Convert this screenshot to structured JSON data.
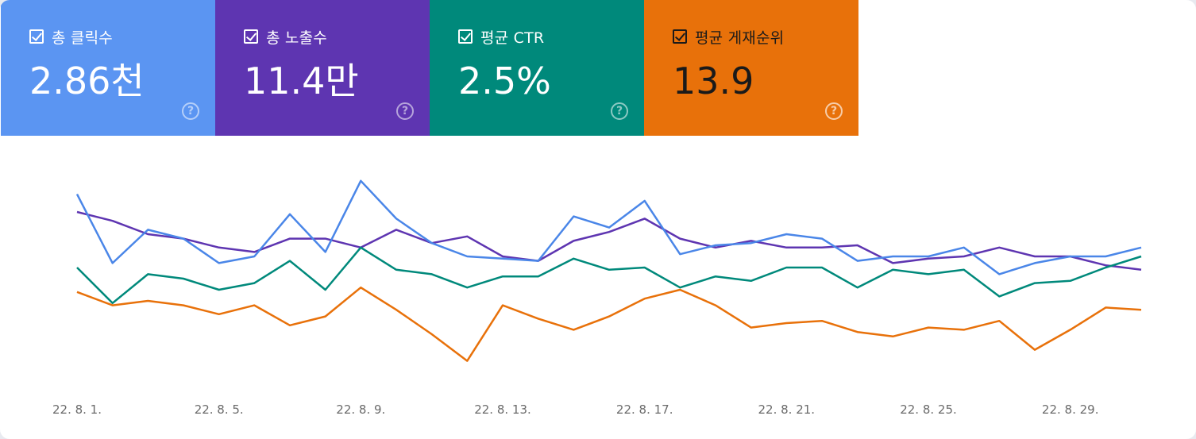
{
  "metrics": [
    {
      "key": "clicks",
      "label": "총 클릭수",
      "value": "2.86천",
      "checked": true,
      "color": "#5b95f2"
    },
    {
      "key": "impressions",
      "label": "총 노출수",
      "value": "11.4만",
      "checked": true,
      "color": "#5e35b1"
    },
    {
      "key": "ctr",
      "label": "평균 CTR",
      "value": "2.5%",
      "checked": true,
      "color": "#00897b"
    },
    {
      "key": "position",
      "label": "평균 게재순위",
      "value": "13.9",
      "checked": true,
      "color": "#e8710a"
    }
  ],
  "help_glyph": "?",
  "chart_data": {
    "type": "line",
    "x": [
      "22. 8. 1.",
      "22. 8. 2.",
      "22. 8. 3.",
      "22. 8. 4.",
      "22. 8. 5.",
      "22. 8. 6.",
      "22. 8. 7.",
      "22. 8. 8.",
      "22. 8. 9.",
      "22. 8. 10.",
      "22. 8. 11.",
      "22. 8. 12.",
      "22. 8. 13.",
      "22. 8. 14.",
      "22. 8. 15.",
      "22. 8. 16.",
      "22. 8. 17.",
      "22. 8. 18.",
      "22. 8. 19.",
      "22. 8. 20.",
      "22. 8. 21.",
      "22. 8. 22.",
      "22. 8. 23.",
      "22. 8. 24.",
      "22. 8. 25.",
      "22. 8. 26.",
      "22. 8. 27.",
      "22. 8. 28.",
      "22. 8. 29.",
      "22. 8. 30.",
      "22. 8. 31."
    ],
    "tick_labels": [
      "22. 8. 1.",
      "22. 8. 5.",
      "22. 8. 9.",
      "22. 8. 13.",
      "22. 8. 17.",
      "22. 8. 21.",
      "22. 8. 25.",
      "22. 8. 29."
    ],
    "tick_indices": [
      0,
      4,
      8,
      12,
      16,
      20,
      24,
      28
    ],
    "grid": false,
    "legend": "none",
    "series": [
      {
        "key": "impressions",
        "color": "#5e35b1",
        "values": [
          0.8,
          0.76,
          0.7,
          0.68,
          0.64,
          0.62,
          0.68,
          0.68,
          0.64,
          0.72,
          0.66,
          0.69,
          0.6,
          0.58,
          0.67,
          0.71,
          0.77,
          0.68,
          0.64,
          0.67,
          0.64,
          0.64,
          0.65,
          0.57,
          0.59,
          0.6,
          0.64,
          0.6,
          0.6,
          0.56,
          0.54
        ]
      },
      {
        "key": "clicks",
        "color": "#4a86e8",
        "values": [
          0.88,
          0.57,
          0.72,
          0.68,
          0.57,
          0.6,
          0.79,
          0.62,
          0.94,
          0.77,
          0.66,
          0.6,
          0.59,
          0.58,
          0.78,
          0.73,
          0.85,
          0.61,
          0.65,
          0.66,
          0.7,
          0.68,
          0.58,
          0.6,
          0.6,
          0.64,
          0.52,
          0.57,
          0.6,
          0.6,
          0.64
        ]
      },
      {
        "key": "ctr",
        "color": "#00897b",
        "values": [
          0.55,
          0.39,
          0.52,
          0.5,
          0.45,
          0.48,
          0.58,
          0.45,
          0.64,
          0.54,
          0.52,
          0.46,
          0.51,
          0.51,
          0.59,
          0.54,
          0.55,
          0.46,
          0.51,
          0.49,
          0.55,
          0.55,
          0.46,
          0.54,
          0.52,
          0.54,
          0.42,
          0.48,
          0.49,
          0.55,
          0.6
        ]
      },
      {
        "key": "position",
        "color": "#e8710a",
        "values": [
          0.44,
          0.38,
          0.4,
          0.38,
          0.34,
          0.38,
          0.29,
          0.33,
          0.46,
          0.36,
          0.25,
          0.13,
          0.38,
          0.32,
          0.27,
          0.33,
          0.41,
          0.45,
          0.38,
          0.28,
          0.3,
          0.31,
          0.26,
          0.24,
          0.28,
          0.27,
          0.31,
          0.18,
          0.27,
          0.37,
          0.36
        ]
      }
    ]
  }
}
